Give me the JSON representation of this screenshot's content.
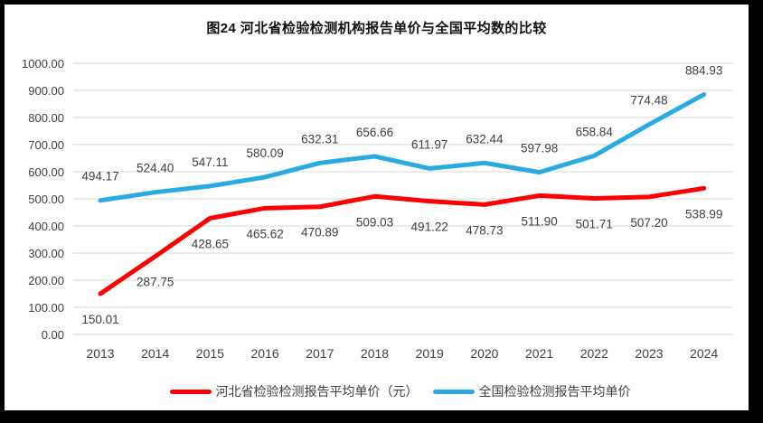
{
  "frame": {
    "outer_background": "#000000",
    "panel_background": "#ffffff"
  },
  "title": "图24 河北省检验检测机构报告单价与全国平均数的比较",
  "chart_data": {
    "type": "line",
    "title": "图24 河北省检验检测机构报告单价与全国平均数的比较",
    "categories": [
      "2013",
      "2014",
      "2015",
      "2016",
      "2017",
      "2018",
      "2019",
      "2020",
      "2021",
      "2022",
      "2023",
      "2024"
    ],
    "series": [
      {
        "name": "河北省检验检测报告平均单价（元）",
        "color": "#ff0000",
        "label_position": "below",
        "values": [
          150.01,
          287.75,
          428.65,
          465.62,
          470.89,
          509.03,
          491.22,
          478.73,
          511.9,
          501.71,
          507.2,
          538.99
        ]
      },
      {
        "name": "全国检验检测报告平均单价",
        "color": "#29abe2",
        "label_position": "above",
        "values": [
          494.17,
          524.4,
          547.11,
          580.09,
          632.31,
          656.66,
          611.97,
          632.44,
          597.98,
          658.84,
          774.48,
          884.93
        ]
      }
    ],
    "xlabel": "",
    "ylabel": "",
    "ylim": [
      0,
      1000
    ],
    "ytick_step": 100,
    "value_decimals": 2,
    "grid": true,
    "grid_color": "#d9d9d9",
    "axis_label_color": "#404040",
    "data_label_color": "#404040",
    "legend_position": "bottom"
  },
  "legend": {
    "items": [
      {
        "label": "河北省检验检测报告平均单价（元）",
        "color": "#ff0000"
      },
      {
        "label": "全国检验检测报告平均单价",
        "color": "#29abe2"
      }
    ]
  }
}
